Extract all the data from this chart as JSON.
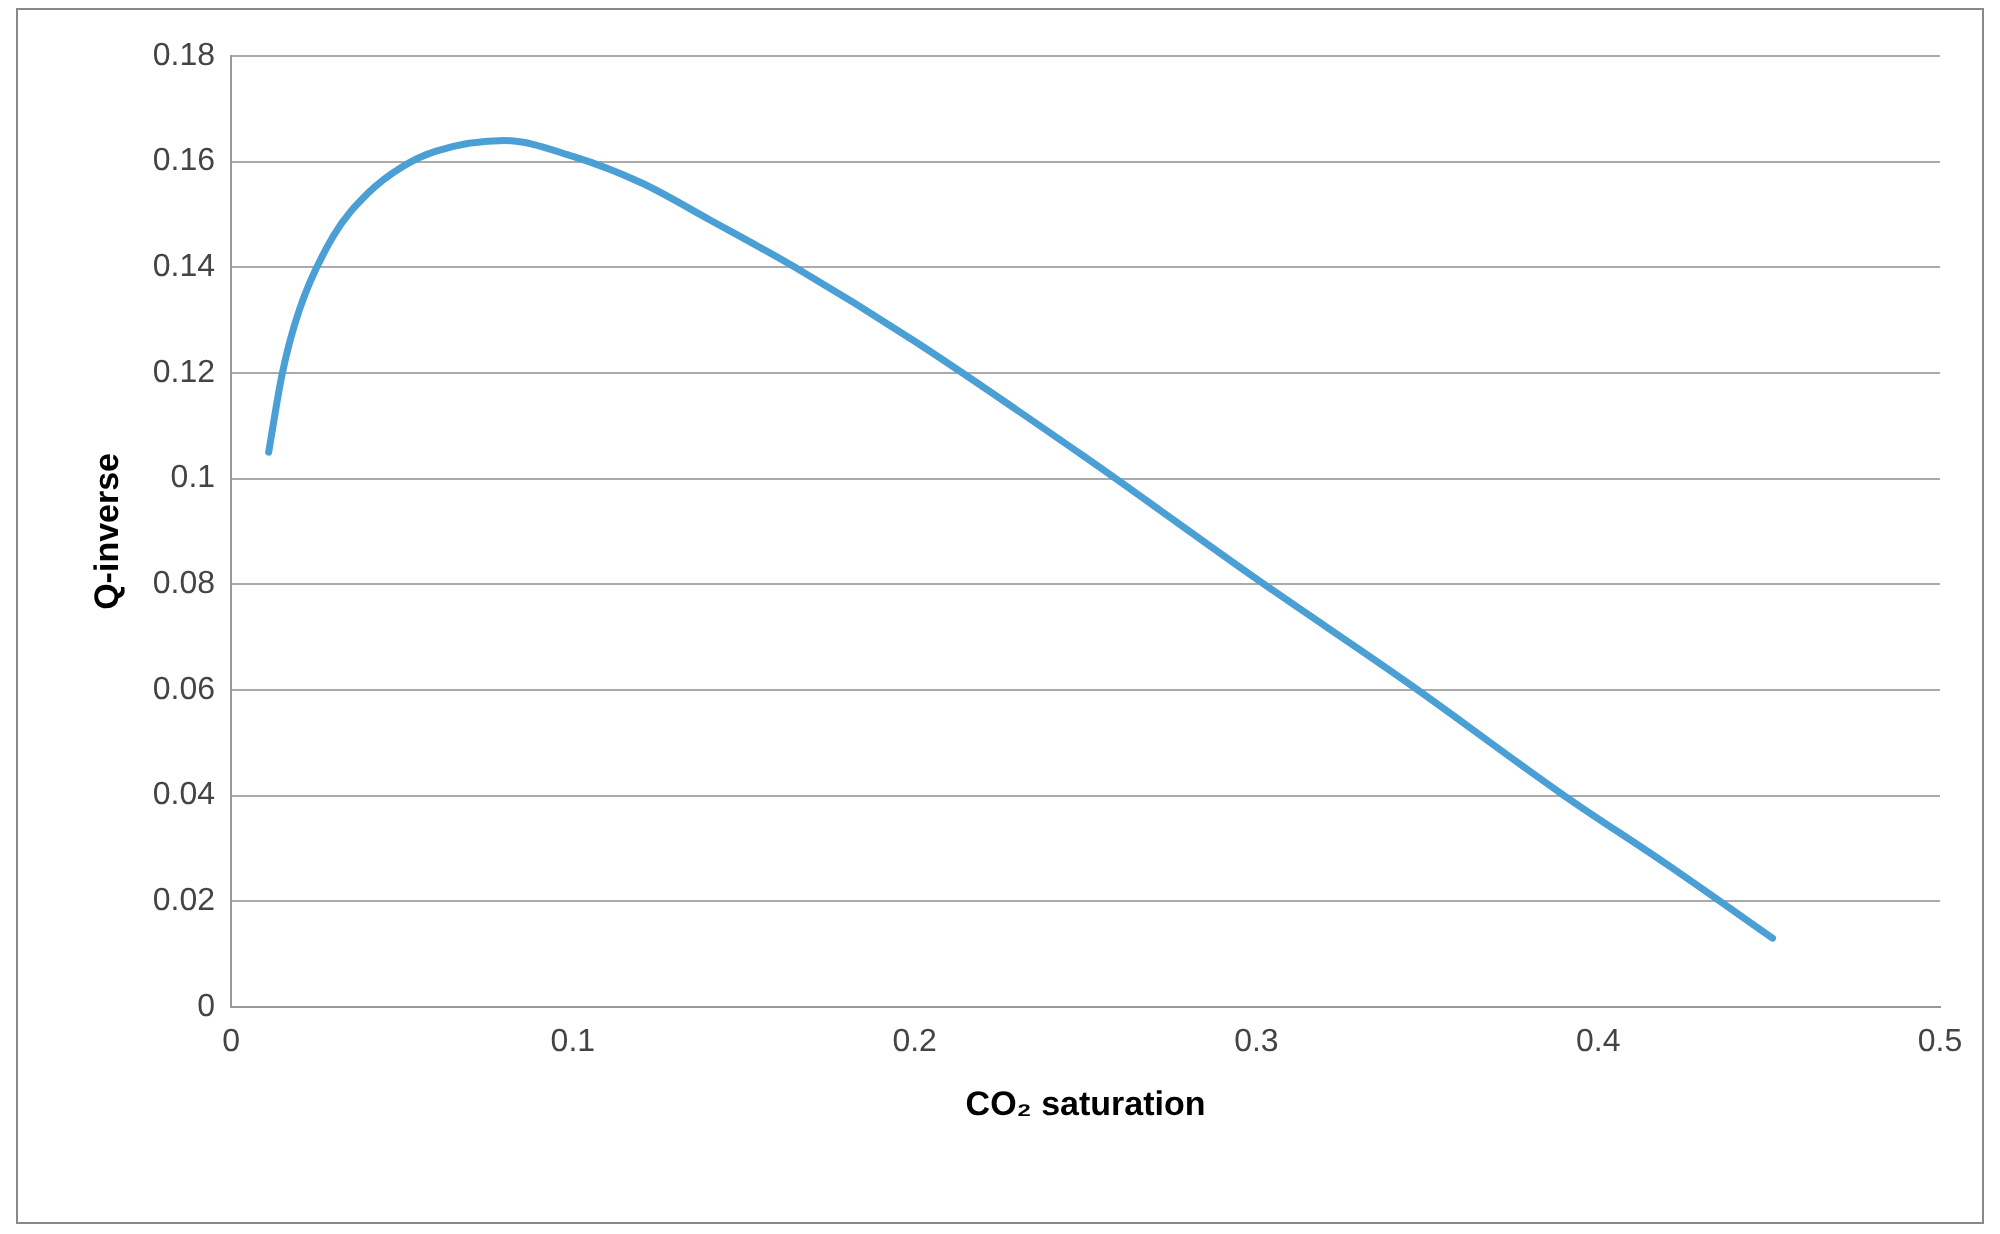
{
  "chart_data": {
    "type": "line",
    "xlabel": "CO₂ saturation",
    "ylabel": "Q-inverse",
    "x": [
      0.011,
      0.015,
      0.02,
      0.03,
      0.04,
      0.05,
      0.06,
      0.08,
      0.1,
      0.12,
      0.14,
      0.165,
      0.2,
      0.25,
      0.3,
      0.345,
      0.39,
      0.42,
      0.451
    ],
    "series": [
      {
        "color": "#4a9fd4",
        "values": [
          0.105,
          0.12,
          0.132,
          0.146,
          0.154,
          0.159,
          0.162,
          0.164,
          0.161,
          0.156,
          0.149,
          0.14,
          0.126,
          0.104,
          0.081,
          0.061,
          0.04,
          0.027,
          0.013
        ]
      }
    ],
    "xlim": [
      0,
      0.5
    ],
    "xticks": [
      0,
      0.1,
      0.2,
      0.3,
      0.4,
      0.5
    ],
    "ylim": [
      0,
      0.18
    ],
    "yticks": [
      0,
      0.02,
      0.04,
      0.06,
      0.08,
      0.1,
      0.12,
      0.14,
      0.16,
      0.18
    ],
    "grid": "y",
    "legend": false,
    "marker": "none",
    "line_style": "solid"
  }
}
